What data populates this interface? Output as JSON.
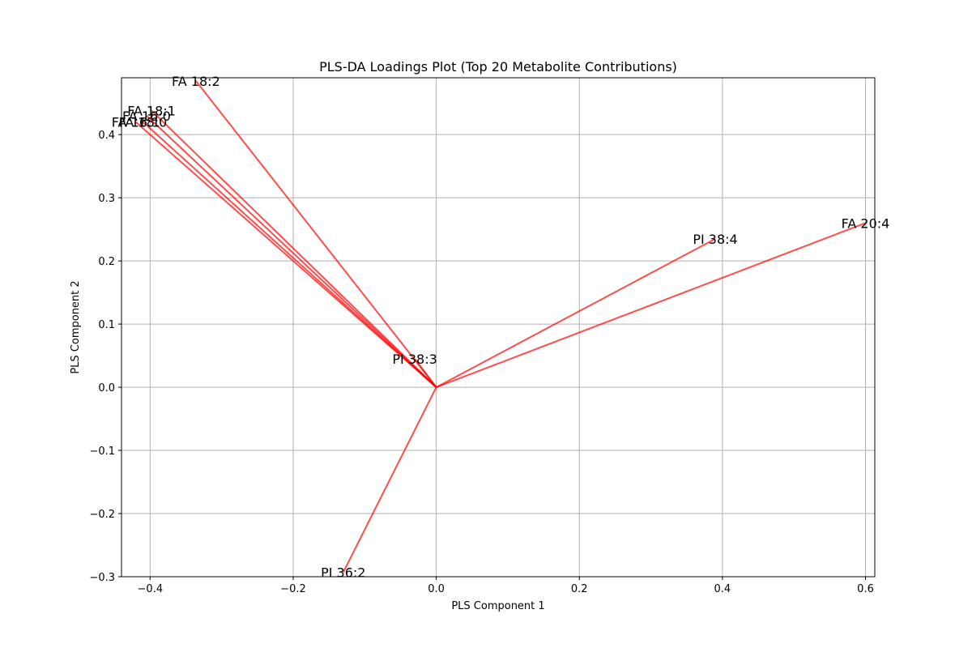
{
  "chart_data": {
    "type": "line",
    "title": "PLS-DA Loadings Plot (Top 20 Metabolite Contributions)",
    "xlabel": "PLS Component 1",
    "ylabel": "PLS Component 2",
    "xlim": [
      -0.44,
      0.613
    ],
    "ylim": [
      -0.3,
      0.49
    ],
    "xticks": [
      -0.4,
      -0.2,
      0.0,
      0.2,
      0.4,
      0.6
    ],
    "xtick_labels": [
      "−0.4",
      "−0.2",
      "0.0",
      "0.2",
      "0.4",
      "0.6"
    ],
    "yticks": [
      -0.3,
      -0.2,
      -0.1,
      0.0,
      0.1,
      0.2,
      0.3,
      0.4
    ],
    "ytick_labels": [
      "−0.3",
      "−0.2",
      "−0.1",
      "0.0",
      "0.1",
      "0.2",
      "0.3",
      "0.4"
    ],
    "grid": true,
    "line_color": "#ff0000",
    "line_alpha": 0.7,
    "origin": [
      0.0,
      0.0
    ],
    "vectors": [
      {
        "label": "FA 18:2",
        "x": -0.336,
        "y": 0.485
      },
      {
        "label": "FA 18:1",
        "x": -0.398,
        "y": 0.438
      },
      {
        "label": "FA 16:0",
        "x": -0.405,
        "y": 0.43
      },
      {
        "label": "FA 18:0",
        "x": -0.41,
        "y": 0.42
      },
      {
        "label": "FA 16:1",
        "x": -0.42,
        "y": 0.42
      },
      {
        "label": "FA 20:4",
        "x": 0.6,
        "y": 0.26
      },
      {
        "label": "PI 38:4",
        "x": 0.39,
        "y": 0.235
      },
      {
        "label": "PI 38:3",
        "x": -0.03,
        "y": 0.045
      },
      {
        "label": "PI 36:2",
        "x": -0.13,
        "y": -0.293
      }
    ]
  }
}
